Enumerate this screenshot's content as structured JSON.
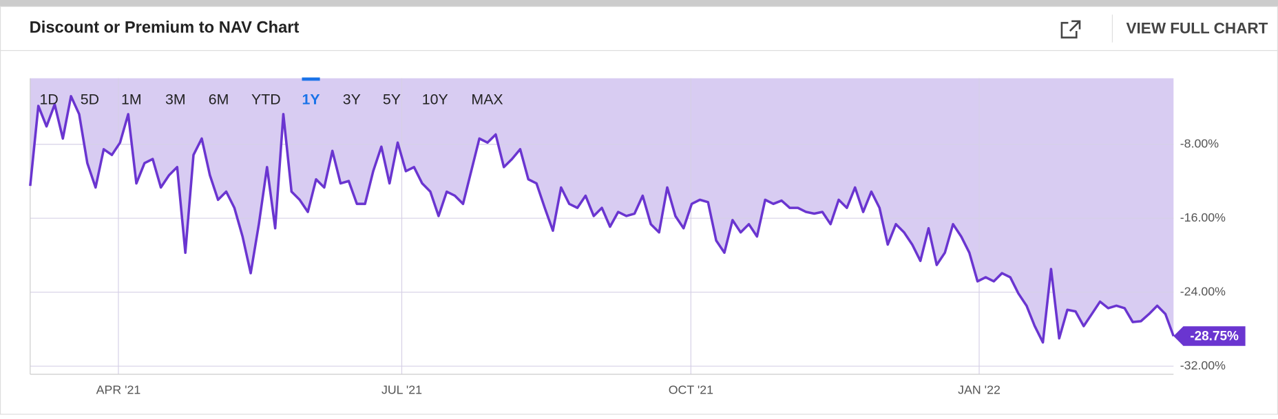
{
  "header": {
    "title": "Discount or Premium to NAV Chart",
    "link": "VIEW FULL CHART"
  },
  "range_buttons": {
    "labels": [
      "1D",
      "5D",
      "1M",
      "3M",
      "6M",
      "YTD",
      "1Y",
      "3Y",
      "5Y",
      "10Y",
      "MAX"
    ],
    "selected": "1Y"
  },
  "chart_data": {
    "type": "line",
    "color": "#6a35d0",
    "fill": "#d8ccf2",
    "grid": true,
    "values": [
      -12.5,
      -3.85,
      -6.06,
      -3.68,
      -7.38,
      -2.8,
      -4.74,
      -10.03,
      -12.67,
      -8.53,
      -9.15,
      -7.82,
      -4.74,
      -12.23,
      -10.03,
      -9.59,
      -12.67,
      -11.35,
      -10.47,
      -19.73,
      -9.15,
      -7.38,
      -11.35,
      -14.0,
      -13.12,
      -14.88,
      -17.97,
      -21.94,
      -16.64,
      -10.47,
      -17.08,
      -4.74,
      -13.12,
      -14.0,
      -15.32,
      -11.79,
      -12.67,
      -8.71,
      -12.23,
      -11.97,
      -14.44,
      -14.44,
      -10.91,
      -8.26,
      -12.23,
      -7.82,
      -10.91,
      -10.47,
      -12.23,
      -13.12,
      -15.76,
      -13.12,
      -13.56,
      -14.44,
      -10.91,
      -7.38,
      -7.82,
      -6.94,
      -10.47,
      -9.59,
      -8.53,
      -11.79,
      -12.23,
      -14.88,
      -17.35,
      -12.67,
      -14.44,
      -14.88,
      -13.56,
      -15.76,
      -14.88,
      -16.91,
      -15.32,
      -15.76,
      -15.5,
      -13.56,
      -16.64,
      -17.53,
      -12.67,
      -15.76,
      -17.08,
      -14.44,
      -14.0,
      -14.26,
      -18.41,
      -19.73,
      -16.2,
      -17.53,
      -16.64,
      -17.97,
      -14.0,
      -14.44,
      -14.09,
      -14.88,
      -14.88,
      -15.32,
      -15.5,
      -15.32,
      -16.64,
      -14.0,
      -14.88,
      -12.67,
      -15.32,
      -13.12,
      -14.88,
      -18.85,
      -16.64,
      -17.53,
      -18.85,
      -20.61,
      -17.08,
      -21.05,
      -19.73,
      -16.64,
      -17.97,
      -19.73,
      -22.82,
      -22.38,
      -22.82,
      -21.94,
      -22.38,
      -24.14,
      -25.46,
      -27.67,
      -29.43,
      -21.49,
      -28.99,
      -25.9,
      -26.08,
      -27.67,
      -26.35,
      -25.02,
      -25.73,
      -25.46,
      -25.73,
      -27.23,
      -27.14,
      -26.35,
      -25.46,
      -26.35,
      -28.75
    ],
    "last_value_label": "-28.75%",
    "xlim": [
      0,
      140
    ],
    "xticks": [
      {
        "value": 10.8,
        "label": "APR '21"
      },
      {
        "value": 45.5,
        "label": "JUL '21"
      },
      {
        "value": 80.9,
        "label": "OCT '21"
      },
      {
        "value": 116.2,
        "label": "JAN '22"
      }
    ],
    "ylim": [
      -32.88,
      -0.86
    ],
    "yticks": [
      {
        "value": -8,
        "label": "-8.00%"
      },
      {
        "value": -16,
        "label": "-16.00%"
      },
      {
        "value": -24,
        "label": "-24.00%"
      },
      {
        "value": -32,
        "label": "-32.00%"
      }
    ]
  }
}
